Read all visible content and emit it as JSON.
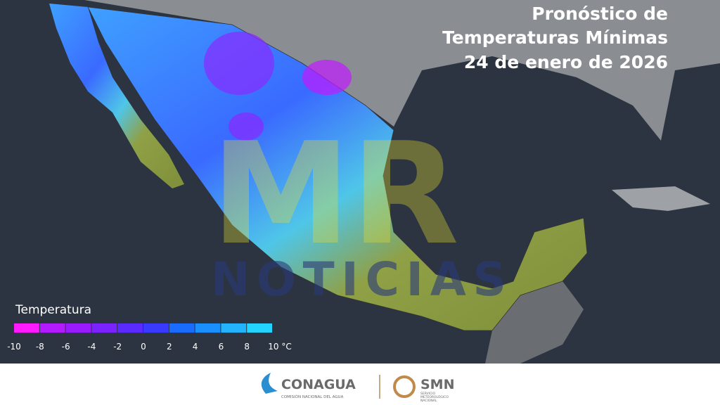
{
  "title": {
    "lines": [
      "Pronóstico de",
      "Temperaturas Mínimas",
      "24 de enero de 2026"
    ]
  },
  "watermark": {
    "logo": "MR",
    "text": "NOTICIAS"
  },
  "legend": {
    "title": "Temperatura",
    "labels": [
      "-10",
      "-8",
      "-6",
      "-4",
      "-2",
      "0",
      "2",
      "4",
      "6",
      "8",
      "10 °C"
    ],
    "colors": [
      "#ff1aff",
      "#b31aff",
      "#9a1aff",
      "#7a22ff",
      "#5a2aff",
      "#3a3aff",
      "#1a6cff",
      "#1a90ff",
      "#22b4ff",
      "#22d4ff",
      "#2ef0f0"
    ]
  },
  "footer": {
    "conagua": {
      "name": "CONAGUA",
      "subtitle": "COMISIÓN NACIONAL DEL AGUA"
    },
    "smn": {
      "name": "SMN",
      "subtitle": [
        "SERVICIO",
        "METEOROLÓGICO",
        "NACIONAL"
      ]
    }
  }
}
